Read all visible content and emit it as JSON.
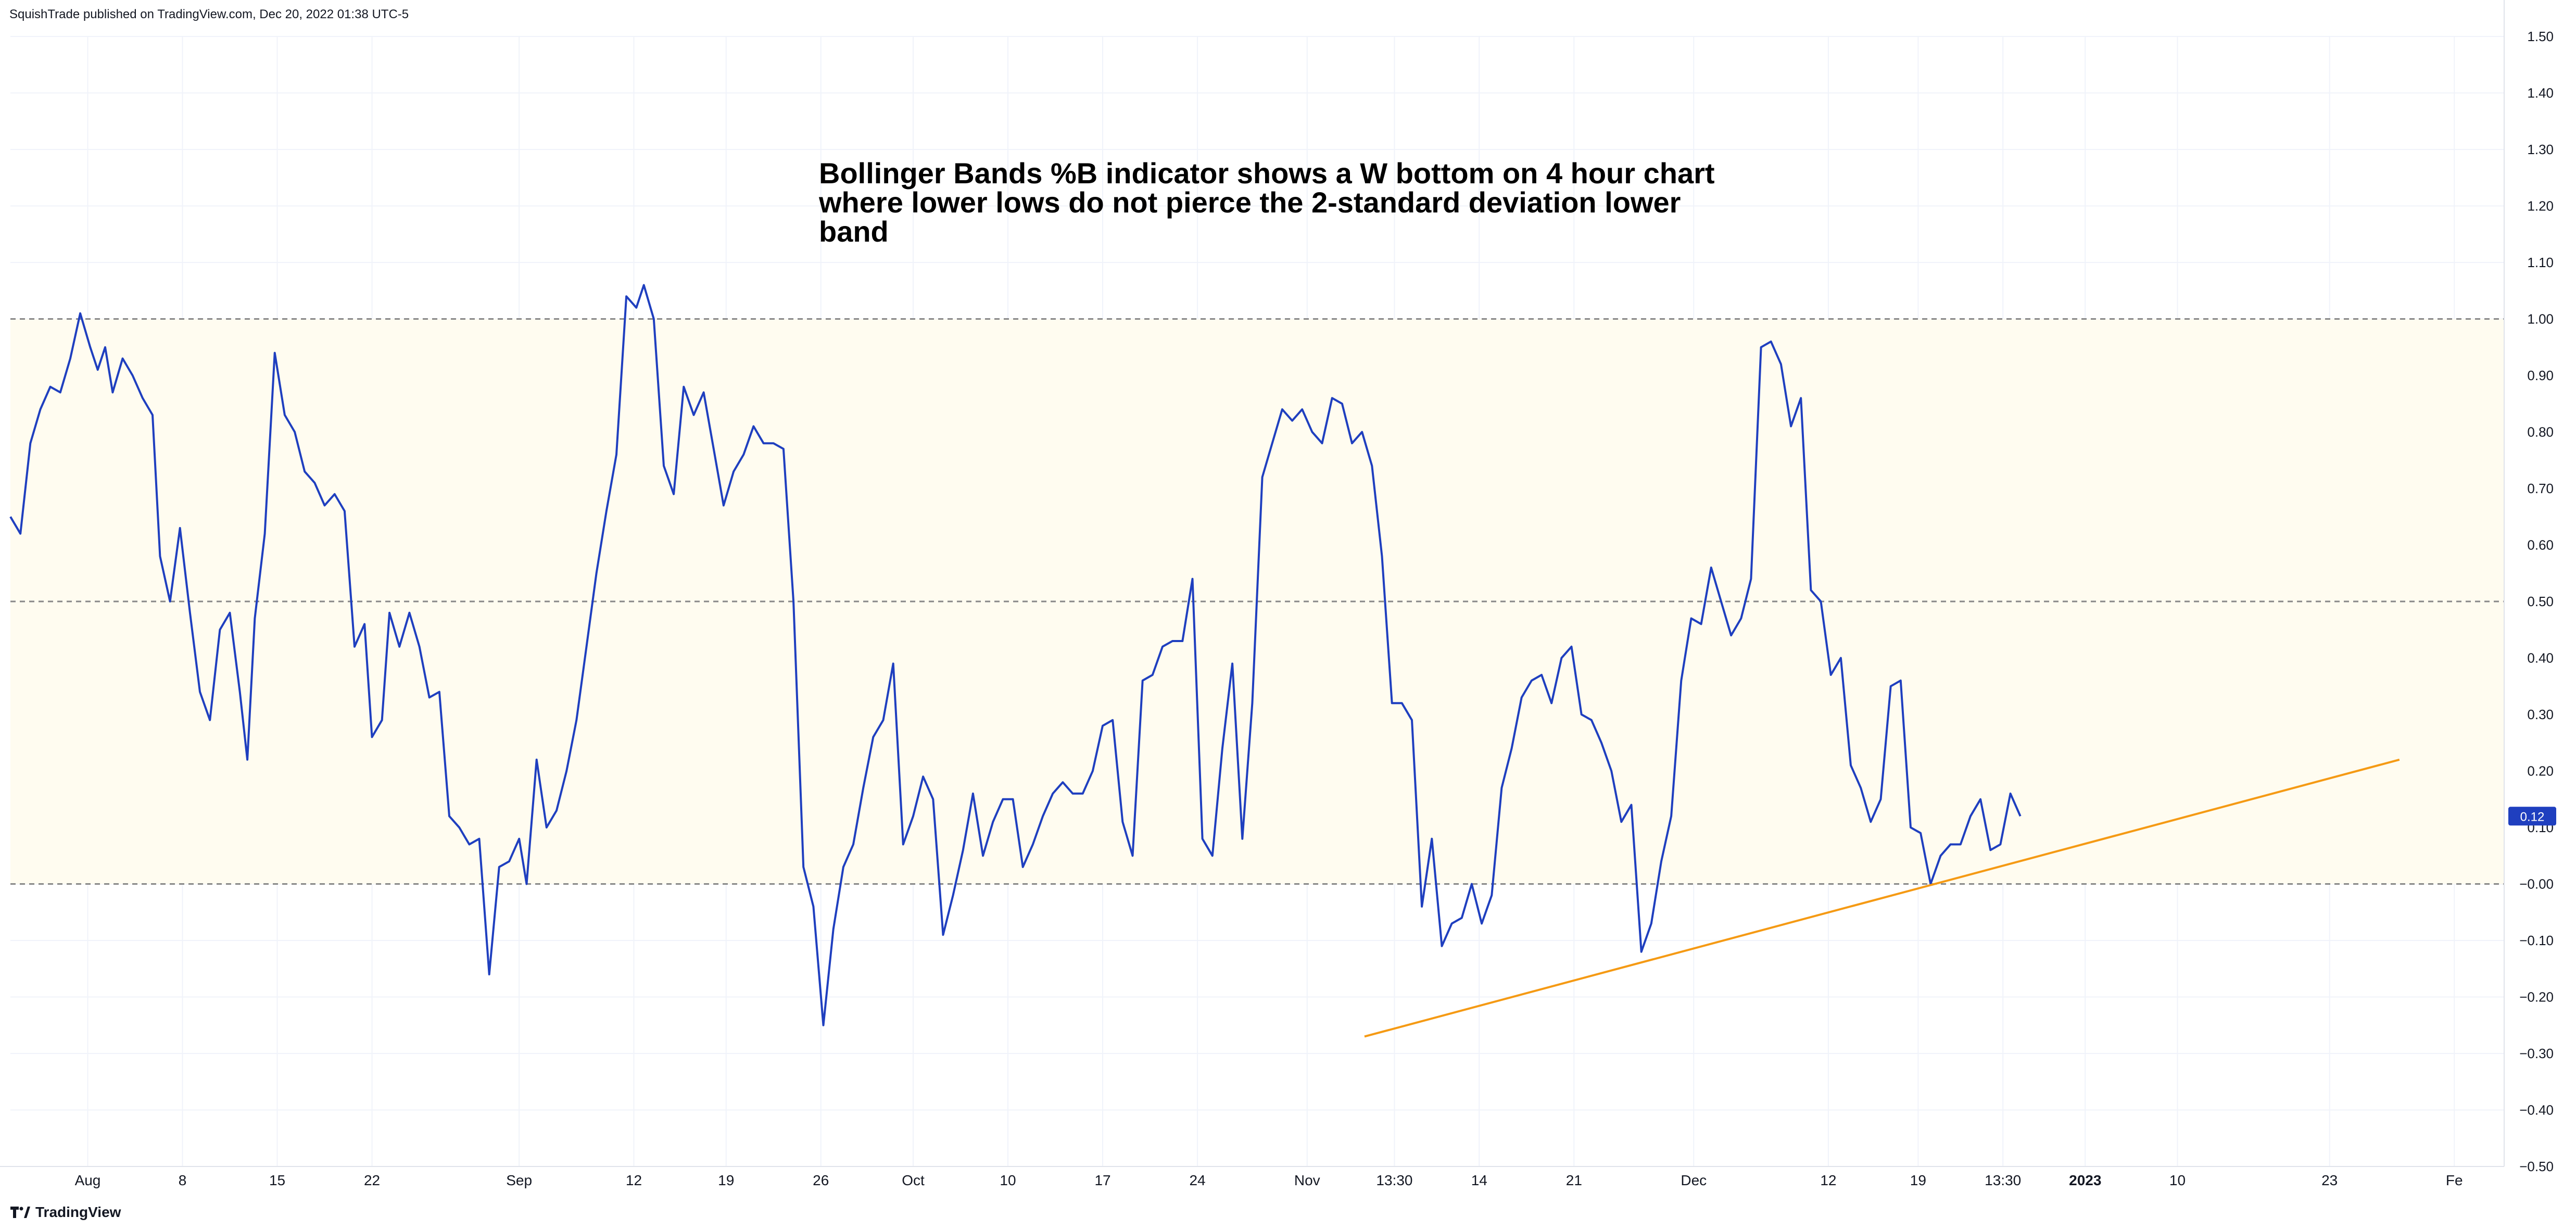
{
  "header": {
    "published_by": "SquishTrade published on TradingView.com, Dec 20, 2022 01:38 UTC-5"
  },
  "footer": {
    "logo_text": "TradingView",
    "logo_icon": "tradingview-logo-icon"
  },
  "annotation": {
    "lines": [
      "Bollinger Bands %B indicator shows a W bottom on 4 hour chart",
      "where lower lows do not pierce the 2-standard deviation lower",
      "band"
    ]
  },
  "colors": {
    "line": "#1f3fbf",
    "trendline": "#f59a14",
    "band_fill": "#fffcf0",
    "dashed": "#888888",
    "grid": "#f0f3fa",
    "badge": "#1f3fbf"
  },
  "chart_data": {
    "type": "line",
    "title": "",
    "xlabel": "",
    "ylabel": "",
    "ylim": [
      -0.5,
      1.5
    ],
    "y_axis_position": "right",
    "grid": true,
    "y_ticks": [
      "1.50",
      "1.40",
      "1.30",
      "1.20",
      "1.10",
      "1.00",
      "0.90",
      "0.80",
      "0.70",
      "0.60",
      "0.50",
      "0.40",
      "0.30",
      "0.20",
      "0.10",
      "−0.00",
      "−0.10",
      "−0.20",
      "−0.30",
      "−0.40",
      "−0.50"
    ],
    "y_tick_values": [
      1.5,
      1.4,
      1.3,
      1.2,
      1.1,
      1.0,
      0.9,
      0.8,
      0.7,
      0.6,
      0.5,
      0.4,
      0.3,
      0.2,
      0.1,
      0.0,
      -0.1,
      -0.2,
      -0.3,
      -0.4,
      -0.5
    ],
    "x_ticks": [
      {
        "label": "Aug",
        "t": 0.031,
        "bold": false
      },
      {
        "label": "8",
        "t": 0.069,
        "bold": false
      },
      {
        "label": "15",
        "t": 0.107,
        "bold": false
      },
      {
        "label": "22",
        "t": 0.145,
        "bold": false
      },
      {
        "label": "Sep",
        "t": 0.204,
        "bold": false
      },
      {
        "label": "12",
        "t": 0.25,
        "bold": false
      },
      {
        "label": "19",
        "t": 0.287,
        "bold": false
      },
      {
        "label": "26",
        "t": 0.325,
        "bold": false
      },
      {
        "label": "Oct",
        "t": 0.362,
        "bold": false
      },
      {
        "label": "10",
        "t": 0.4,
        "bold": false
      },
      {
        "label": "17",
        "t": 0.438,
        "bold": false
      },
      {
        "label": "24",
        "t": 0.476,
        "bold": false
      },
      {
        "label": "Nov",
        "t": 0.52,
        "bold": false
      },
      {
        "label": "13:30",
        "t": 0.555,
        "bold": false
      },
      {
        "label": "14",
        "t": 0.589,
        "bold": false
      },
      {
        "label": "21",
        "t": 0.627,
        "bold": false
      },
      {
        "label": "Dec",
        "t": 0.675,
        "bold": false
      },
      {
        "label": "12",
        "t": 0.729,
        "bold": false
      },
      {
        "label": "19",
        "t": 0.765,
        "bold": false
      },
      {
        "label": "13:30",
        "t": 0.799,
        "bold": false
      },
      {
        "label": "2023",
        "t": 0.832,
        "bold": true
      },
      {
        "label": "10",
        "t": 0.869,
        "bold": false
      },
      {
        "label": "23",
        "t": 0.93,
        "bold": false
      },
      {
        "label": "Fe",
        "t": 0.98,
        "bold": false
      }
    ],
    "reference_lines": [
      1.0,
      0.5,
      0.0
    ],
    "band": [
      0.0,
      1.0
    ],
    "last_value": {
      "label": "0.12",
      "value": 0.12
    },
    "series": [
      {
        "points": [
          [
            0.0,
            0.65
          ],
          [
            0.004,
            0.62
          ],
          [
            0.008,
            0.78
          ],
          [
            0.012,
            0.84
          ],
          [
            0.016,
            0.88
          ],
          [
            0.02,
            0.87
          ],
          [
            0.024,
            0.93
          ],
          [
            0.028,
            1.01
          ],
          [
            0.032,
            0.95
          ],
          [
            0.035,
            0.91
          ],
          [
            0.038,
            0.95
          ],
          [
            0.041,
            0.87
          ],
          [
            0.045,
            0.93
          ],
          [
            0.049,
            0.9
          ],
          [
            0.053,
            0.86
          ],
          [
            0.057,
            0.83
          ],
          [
            0.06,
            0.58
          ],
          [
            0.064,
            0.5
          ],
          [
            0.068,
            0.63
          ],
          [
            0.072,
            0.48
          ],
          [
            0.076,
            0.34
          ],
          [
            0.08,
            0.29
          ],
          [
            0.084,
            0.45
          ],
          [
            0.088,
            0.48
          ],
          [
            0.092,
            0.34
          ],
          [
            0.095,
            0.22
          ],
          [
            0.098,
            0.47
          ],
          [
            0.102,
            0.62
          ],
          [
            0.106,
            0.94
          ],
          [
            0.11,
            0.83
          ],
          [
            0.114,
            0.8
          ],
          [
            0.118,
            0.73
          ],
          [
            0.122,
            0.71
          ],
          [
            0.126,
            0.67
          ],
          [
            0.13,
            0.69
          ],
          [
            0.134,
            0.66
          ],
          [
            0.138,
            0.42
          ],
          [
            0.142,
            0.46
          ],
          [
            0.145,
            0.26
          ],
          [
            0.149,
            0.29
          ],
          [
            0.152,
            0.48
          ],
          [
            0.156,
            0.42
          ],
          [
            0.16,
            0.48
          ],
          [
            0.164,
            0.42
          ],
          [
            0.168,
            0.33
          ],
          [
            0.172,
            0.34
          ],
          [
            0.176,
            0.12
          ],
          [
            0.18,
            0.1
          ],
          [
            0.184,
            0.07
          ],
          [
            0.188,
            0.08
          ],
          [
            0.192,
            -0.16
          ],
          [
            0.196,
            0.03
          ],
          [
            0.2,
            0.04
          ],
          [
            0.204,
            0.08
          ],
          [
            0.207,
            0.0
          ],
          [
            0.211,
            0.22
          ],
          [
            0.215,
            0.1
          ],
          [
            0.219,
            0.13
          ],
          [
            0.223,
            0.2
          ],
          [
            0.227,
            0.29
          ],
          [
            0.231,
            0.42
          ],
          [
            0.235,
            0.55
          ],
          [
            0.239,
            0.66
          ],
          [
            0.243,
            0.76
          ],
          [
            0.247,
            1.04
          ],
          [
            0.251,
            1.02
          ],
          [
            0.254,
            1.06
          ],
          [
            0.258,
            1.0
          ],
          [
            0.262,
            0.74
          ],
          [
            0.266,
            0.69
          ],
          [
            0.27,
            0.88
          ],
          [
            0.274,
            0.83
          ],
          [
            0.278,
            0.87
          ],
          [
            0.282,
            0.77
          ],
          [
            0.286,
            0.67
          ],
          [
            0.29,
            0.73
          ],
          [
            0.294,
            0.76
          ],
          [
            0.298,
            0.81
          ],
          [
            0.302,
            0.78
          ],
          [
            0.306,
            0.78
          ],
          [
            0.31,
            0.77
          ],
          [
            0.314,
            0.5
          ],
          [
            0.318,
            0.03
          ],
          [
            0.322,
            -0.04
          ],
          [
            0.326,
            -0.25
          ],
          [
            0.33,
            -0.08
          ],
          [
            0.334,
            0.03
          ],
          [
            0.338,
            0.07
          ],
          [
            0.342,
            0.17
          ],
          [
            0.346,
            0.26
          ],
          [
            0.35,
            0.29
          ],
          [
            0.354,
            0.39
          ],
          [
            0.358,
            0.07
          ],
          [
            0.362,
            0.12
          ],
          [
            0.366,
            0.19
          ],
          [
            0.37,
            0.15
          ],
          [
            0.374,
            -0.09
          ],
          [
            0.378,
            -0.02
          ],
          [
            0.382,
            0.06
          ],
          [
            0.386,
            0.16
          ],
          [
            0.39,
            0.05
          ],
          [
            0.394,
            0.11
          ],
          [
            0.398,
            0.15
          ],
          [
            0.402,
            0.15
          ],
          [
            0.406,
            0.03
          ],
          [
            0.41,
            0.07
          ],
          [
            0.414,
            0.12
          ],
          [
            0.418,
            0.16
          ],
          [
            0.422,
            0.18
          ],
          [
            0.426,
            0.16
          ],
          [
            0.43,
            0.16
          ],
          [
            0.434,
            0.2
          ],
          [
            0.438,
            0.28
          ],
          [
            0.442,
            0.29
          ],
          [
            0.446,
            0.11
          ],
          [
            0.45,
            0.05
          ],
          [
            0.454,
            0.36
          ],
          [
            0.458,
            0.37
          ],
          [
            0.462,
            0.42
          ],
          [
            0.466,
            0.43
          ],
          [
            0.47,
            0.43
          ],
          [
            0.474,
            0.54
          ],
          [
            0.478,
            0.08
          ],
          [
            0.482,
            0.05
          ],
          [
            0.486,
            0.24
          ],
          [
            0.49,
            0.39
          ],
          [
            0.494,
            0.08
          ],
          [
            0.498,
            0.32
          ],
          [
            0.502,
            0.72
          ],
          [
            0.506,
            0.78
          ],
          [
            0.51,
            0.84
          ],
          [
            0.514,
            0.82
          ],
          [
            0.518,
            0.84
          ],
          [
            0.522,
            0.8
          ],
          [
            0.526,
            0.78
          ],
          [
            0.53,
            0.86
          ],
          [
            0.534,
            0.85
          ],
          [
            0.538,
            0.78
          ],
          [
            0.542,
            0.8
          ],
          [
            0.546,
            0.74
          ],
          [
            0.55,
            0.58
          ],
          [
            0.554,
            0.32
          ],
          [
            0.558,
            0.32
          ],
          [
            0.562,
            0.29
          ],
          [
            0.566,
            -0.04
          ],
          [
            0.57,
            0.08
          ],
          [
            0.574,
            -0.11
          ],
          [
            0.578,
            -0.07
          ],
          [
            0.582,
            -0.06
          ],
          [
            0.586,
            0.0
          ],
          [
            0.59,
            -0.07
          ],
          [
            0.594,
            -0.02
          ],
          [
            0.598,
            0.17
          ],
          [
            0.602,
            0.24
          ],
          [
            0.606,
            0.33
          ],
          [
            0.61,
            0.36
          ],
          [
            0.614,
            0.37
          ],
          [
            0.618,
            0.32
          ],
          [
            0.622,
            0.4
          ],
          [
            0.626,
            0.42
          ],
          [
            0.63,
            0.3
          ],
          [
            0.634,
            0.29
          ],
          [
            0.638,
            0.25
          ],
          [
            0.642,
            0.2
          ],
          [
            0.646,
            0.11
          ],
          [
            0.65,
            0.14
          ],
          [
            0.654,
            -0.12
          ],
          [
            0.658,
            -0.07
          ],
          [
            0.662,
            0.04
          ],
          [
            0.666,
            0.12
          ],
          [
            0.67,
            0.36
          ],
          [
            0.674,
            0.47
          ],
          [
            0.678,
            0.46
          ],
          [
            0.682,
            0.56
          ],
          [
            0.686,
            0.5
          ],
          [
            0.69,
            0.44
          ],
          [
            0.694,
            0.47
          ],
          [
            0.698,
            0.54
          ],
          [
            0.702,
            0.95
          ],
          [
            0.706,
            0.96
          ],
          [
            0.71,
            0.92
          ],
          [
            0.714,
            0.81
          ],
          [
            0.718,
            0.86
          ],
          [
            0.722,
            0.52
          ],
          [
            0.726,
            0.5
          ],
          [
            0.73,
            0.37
          ],
          [
            0.734,
            0.4
          ],
          [
            0.738,
            0.21
          ],
          [
            0.742,
            0.17
          ],
          [
            0.746,
            0.11
          ],
          [
            0.75,
            0.15
          ],
          [
            0.754,
            0.35
          ],
          [
            0.758,
            0.36
          ],
          [
            0.762,
            0.1
          ],
          [
            0.766,
            0.09
          ],
          [
            0.77,
            0.0
          ],
          [
            0.774,
            0.05
          ],
          [
            0.778,
            0.07
          ],
          [
            0.782,
            0.07
          ],
          [
            0.786,
            0.12
          ],
          [
            0.79,
            0.15
          ],
          [
            0.794,
            0.06
          ],
          [
            0.798,
            0.07
          ],
          [
            0.802,
            0.16
          ],
          [
            0.806,
            0.12
          ]
        ]
      },
      {
        "points": [
          [
            0.543,
            -0.27
          ],
          [
            0.958,
            0.22
          ]
        ]
      }
    ]
  }
}
